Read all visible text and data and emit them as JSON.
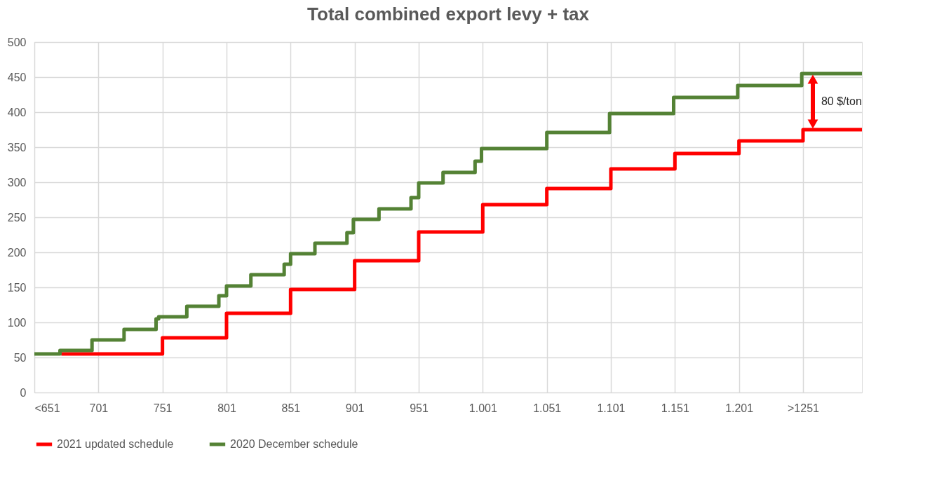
{
  "chart_data": {
    "type": "step",
    "title": "Total combined export levy + tax",
    "xlim": [
      651,
      1297
    ],
    "ylim": [
      0,
      500
    ],
    "xticks": [
      {
        "value": 651,
        "label": "<651"
      },
      701,
      751,
      801,
      851,
      901,
      951,
      {
        "value": 1001,
        "label": "1.001"
      },
      {
        "value": 1051,
        "label": "1.051"
      },
      {
        "value": 1101,
        "label": "1.101"
      },
      {
        "value": 1151,
        "label": "1.151"
      },
      {
        "value": 1201,
        "label": "1.201"
      },
      {
        "value": 1251,
        "label": ">1251"
      }
    ],
    "yticks": [
      0,
      50,
      100,
      150,
      200,
      250,
      300,
      350,
      400,
      450,
      500
    ],
    "grid": true,
    "legend": "bottom",
    "line_style": "solid",
    "marker": "none",
    "series": [
      {
        "name": "2021 updated schedule",
        "color": "#ff0000",
        "x": [
          672,
          751,
          801,
          851,
          901,
          951,
          1001,
          1051,
          1101,
          1151,
          1201,
          1251,
          1297
        ],
        "values": [
          55,
          78,
          113,
          147,
          188,
          229,
          268,
          291,
          319,
          341,
          359,
          375,
          375
        ]
      },
      {
        "name": "2020 December schedule",
        "color": "#548235",
        "x": [
          651,
          671,
          696,
          721,
          746,
          748,
          770,
          795,
          801,
          820,
          846,
          851,
          870,
          895,
          900,
          920,
          945,
          951,
          970,
          995,
          1000,
          1051,
          1100,
          1150,
          1200,
          1250,
          1297
        ],
        "values": [
          55,
          60,
          75,
          90,
          105,
          108,
          123,
          138,
          152,
          168,
          183,
          198,
          213,
          228,
          247,
          262,
          278,
          299,
          314,
          330,
          348,
          371,
          398,
          421,
          438,
          455,
          455
        ]
      }
    ],
    "annotations": [
      "80 $/ton"
    ]
  }
}
